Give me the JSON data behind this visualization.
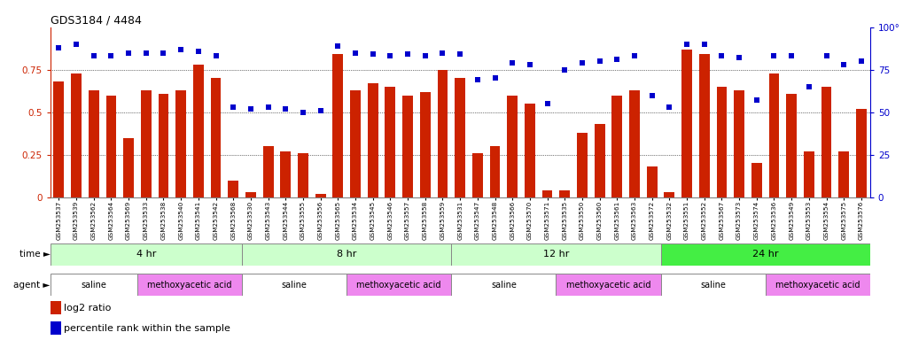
{
  "title": "GDS3184 / 4484",
  "samples": [
    "GSM253537",
    "GSM253539",
    "GSM253562",
    "GSM253564",
    "GSM253569",
    "GSM253533",
    "GSM253538",
    "GSM253540",
    "GSM253541",
    "GSM253542",
    "GSM253568",
    "GSM253530",
    "GSM253543",
    "GSM253544",
    "GSM253555",
    "GSM253556",
    "GSM253565",
    "GSM253534",
    "GSM253545",
    "GSM253546",
    "GSM253557",
    "GSM253558",
    "GSM253559",
    "GSM253531",
    "GSM253547",
    "GSM253548",
    "GSM253566",
    "GSM253570",
    "GSM253571",
    "GSM253535",
    "GSM253550",
    "GSM253560",
    "GSM253561",
    "GSM253563",
    "GSM253572",
    "GSM253532",
    "GSM253551",
    "GSM253552",
    "GSM253567",
    "GSM253573",
    "GSM253574",
    "GSM253536",
    "GSM253549",
    "GSM253553",
    "GSM253554",
    "GSM253575",
    "GSM253576"
  ],
  "log2_ratio": [
    0.68,
    0.73,
    0.63,
    0.6,
    0.35,
    0.63,
    0.61,
    0.63,
    0.78,
    0.7,
    0.1,
    0.03,
    0.3,
    0.27,
    0.26,
    0.02,
    0.84,
    0.63,
    0.67,
    0.65,
    0.6,
    0.62,
    0.75,
    0.7,
    0.26,
    0.3,
    0.6,
    0.55,
    0.04,
    0.04,
    0.38,
    0.43,
    0.6,
    0.63,
    0.18,
    0.03,
    0.87,
    0.84,
    0.65,
    0.63,
    0.2,
    0.73,
    0.61,
    0.27,
    0.65,
    0.27,
    0.52
  ],
  "percentile_rank": [
    88,
    90,
    83,
    83,
    85,
    85,
    85,
    87,
    86,
    83,
    53,
    52,
    53,
    52,
    50,
    51,
    89,
    85,
    84,
    83,
    84,
    83,
    85,
    84,
    69,
    70,
    79,
    78,
    55,
    75,
    79,
    80,
    81,
    83,
    60,
    53,
    90,
    90,
    83,
    82,
    57,
    83,
    83,
    65,
    83,
    78,
    80
  ],
  "time_groups": [
    {
      "label": "4 hr",
      "start": 0,
      "end": 11,
      "color": "#ccffcc"
    },
    {
      "label": "8 hr",
      "start": 11,
      "end": 23,
      "color": "#ccffcc"
    },
    {
      "label": "12 hr",
      "start": 23,
      "end": 35,
      "color": "#ccffcc"
    },
    {
      "label": "24 hr",
      "start": 35,
      "end": 47,
      "color": "#44ee44"
    }
  ],
  "agent_groups": [
    {
      "label": "saline",
      "start": 0,
      "end": 5,
      "color": "#ffffff"
    },
    {
      "label": "methoxyacetic acid",
      "start": 5,
      "end": 11,
      "color": "#ee88ee"
    },
    {
      "label": "saline",
      "start": 11,
      "end": 17,
      "color": "#ffffff"
    },
    {
      "label": "methoxyacetic acid",
      "start": 17,
      "end": 23,
      "color": "#ee88ee"
    },
    {
      "label": "saline",
      "start": 23,
      "end": 29,
      "color": "#ffffff"
    },
    {
      "label": "methoxyacetic acid",
      "start": 29,
      "end": 35,
      "color": "#ee88ee"
    },
    {
      "label": "saline",
      "start": 35,
      "end": 41,
      "color": "#ffffff"
    },
    {
      "label": "methoxyacetic acid",
      "start": 41,
      "end": 47,
      "color": "#ee88ee"
    }
  ],
  "bar_color": "#cc2200",
  "dot_color": "#0000cc",
  "left_axis_color": "#cc2200",
  "right_axis_color": "#0000cc",
  "ylim_left": [
    0,
    1.0
  ],
  "ylim_right": [
    0,
    100
  ],
  "yticks_left": [
    0,
    0.25,
    0.5,
    0.75
  ],
  "ytick_labels_left": [
    "0",
    "0.25",
    "0.5",
    "0.75"
  ],
  "yticks_right": [
    0,
    25,
    50,
    75,
    100
  ],
  "ytick_labels_right": [
    "0",
    "25",
    "50",
    "75",
    "100°"
  ],
  "grid_lines": [
    0.25,
    0.5,
    0.75
  ],
  "background_color": "#ffffff"
}
